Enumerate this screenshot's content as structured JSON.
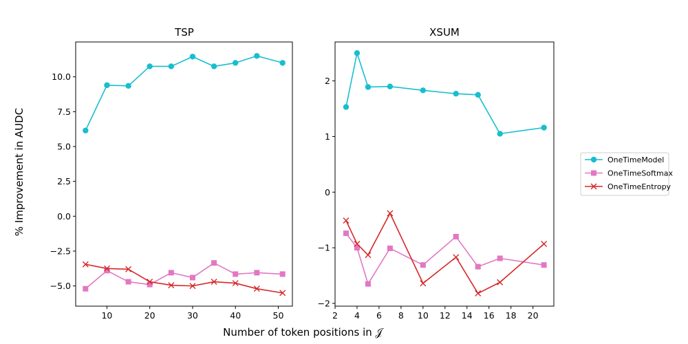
{
  "figure": {
    "xlabel": "Number of token positions in 𝒥",
    "ylabel": "% Improvement in AUDC"
  },
  "legend": {
    "placement": "right",
    "entries": [
      {
        "label": "OneTimeModel",
        "color": "#17becf",
        "marker": "circle"
      },
      {
        "label": "OneTimeSoftmax",
        "color": "#e377c2",
        "marker": "square"
      },
      {
        "label": "OneTimeEntropy",
        "color": "#d62728",
        "marker": "x"
      }
    ]
  },
  "chart_data": [
    {
      "type": "line",
      "title": "TSP",
      "xlabel": "",
      "ylabel": "% Improvement in AUDC",
      "xlim": [
        2.7,
        53.3
      ],
      "ylim": [
        -6.45,
        12.5
      ],
      "xticks": [
        10,
        20,
        30,
        40,
        50
      ],
      "xtick_labels": [
        "10",
        "20",
        "30",
        "40",
        "50"
      ],
      "yticks": [
        -5.0,
        -2.5,
        0.0,
        2.5,
        5.0,
        7.5,
        10.0
      ],
      "ytick_labels": [
        "−5.0",
        "−2.5",
        "0.0",
        "2.5",
        "5.0",
        "7.5",
        "10.0"
      ],
      "grid": false,
      "x": [
        5,
        10,
        15,
        20,
        25,
        30,
        35,
        40,
        45,
        51
      ],
      "series": [
        {
          "name": "OneTimeModel",
          "color": "#17becf",
          "marker": "circle",
          "values": [
            6.15,
            9.4,
            9.35,
            10.75,
            10.75,
            11.45,
            10.75,
            11.0,
            11.5,
            11.0
          ]
        },
        {
          "name": "OneTimeSoftmax",
          "color": "#e377c2",
          "marker": "square",
          "values": [
            -5.2,
            -3.9,
            -4.7,
            -4.9,
            -4.05,
            -4.4,
            -3.35,
            -4.15,
            -4.05,
            -4.15
          ]
        },
        {
          "name": "OneTimeEntropy",
          "color": "#d62728",
          "marker": "x",
          "values": [
            -3.45,
            -3.75,
            -3.8,
            -4.7,
            -4.95,
            -5.0,
            -4.7,
            -4.8,
            -5.2,
            -5.5
          ]
        }
      ]
    },
    {
      "type": "line",
      "title": "XSUM",
      "xlabel": "",
      "ylabel": "",
      "xlim": [
        2.0,
        21.9
      ],
      "ylim": [
        -2.05,
        2.7
      ],
      "xticks": [
        2,
        4,
        6,
        8,
        10,
        12,
        14,
        16,
        18,
        20
      ],
      "xtick_labels": [
        "2",
        "4",
        "6",
        "8",
        "10",
        "12",
        "14",
        "16",
        "18",
        "20"
      ],
      "yticks": [
        -2,
        -1,
        0,
        1,
        2
      ],
      "ytick_labels": [
        "−2",
        "−1",
        "0",
        "1",
        "2"
      ],
      "grid": false,
      "x": [
        3,
        4,
        5,
        7,
        10,
        13,
        15,
        17,
        21
      ],
      "series": [
        {
          "name": "OneTimeModel",
          "color": "#17becf",
          "marker": "circle",
          "values": [
            1.53,
            2.5,
            1.89,
            1.9,
            1.83,
            1.77,
            1.75,
            1.05,
            1.16
          ]
        },
        {
          "name": "OneTimeSoftmax",
          "color": "#e377c2",
          "marker": "square",
          "values": [
            -0.74,
            -1.0,
            -1.65,
            -1.01,
            -1.31,
            -0.8,
            -1.34,
            -1.19,
            -1.31
          ]
        },
        {
          "name": "OneTimeEntropy",
          "color": "#d62728",
          "marker": "x",
          "values": [
            -0.51,
            -0.93,
            -1.13,
            -0.38,
            -1.64,
            -1.17,
            -1.82,
            -1.62,
            -0.93
          ]
        }
      ]
    }
  ]
}
